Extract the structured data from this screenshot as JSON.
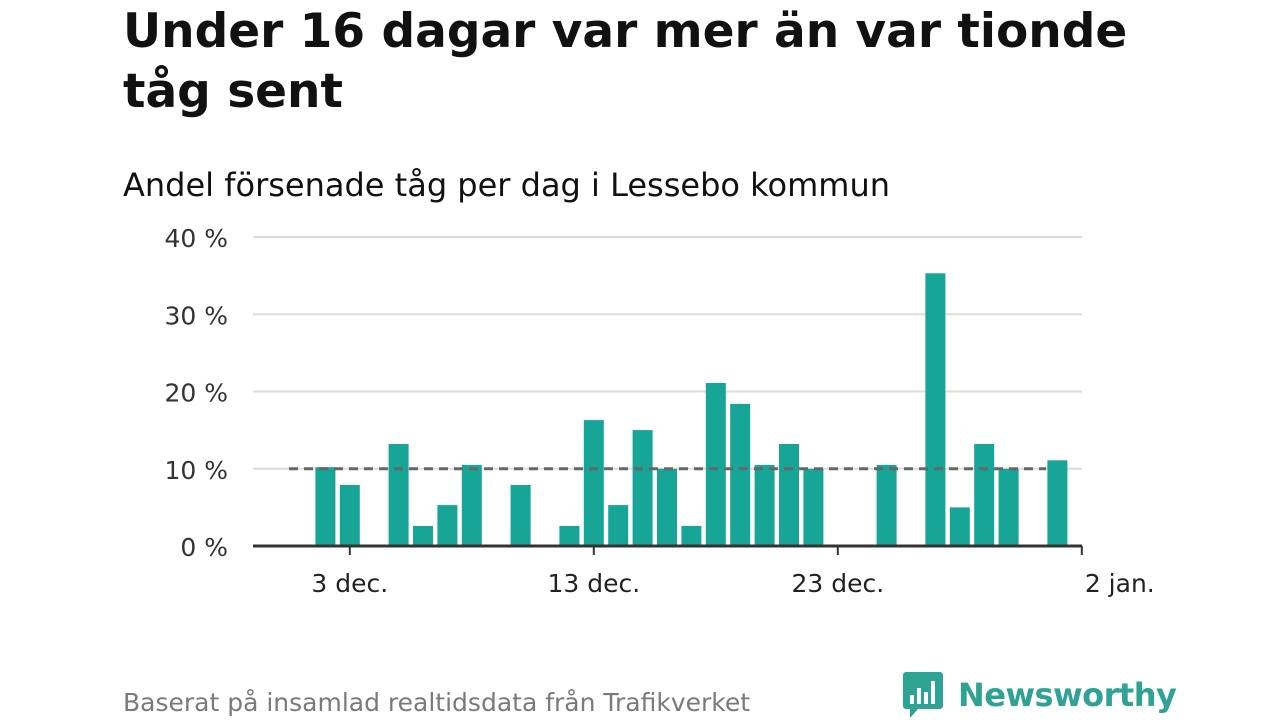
{
  "title": "Under 16 dagar var mer än var tionde tåg sent",
  "subtitle": "Andel försenade tåg per dag i Lessebo kommun",
  "footer": {
    "note": "Baserat på insamlad realtidsdata från Trafikverket",
    "brand": "Newsworthy",
    "brand_icon": "bar-chart-speech-bubble-icon"
  },
  "colors": {
    "bar": "#16a597",
    "reference_line": "#666666",
    "grid": "#dddddd",
    "axis": "#333333",
    "brand": "#2fa393",
    "footer_text": "#7a7a7a"
  },
  "chart_data": {
    "type": "bar",
    "x_start": "2024-12-01",
    "x_labels": [
      {
        "date": "2024-12-03",
        "label": "3 dec."
      },
      {
        "date": "2024-12-13",
        "label": "13 dec."
      },
      {
        "date": "2024-12-23",
        "label": "23 dec."
      },
      {
        "date": "2025-01-02",
        "label": "2 jan."
      }
    ],
    "x_range": [
      "2024-11-30",
      "2025-01-02"
    ],
    "y_ticks": [
      "0 %",
      "10 %",
      "20 %",
      "30 %",
      "40 %"
    ],
    "ylim": [
      0,
      40
    ],
    "grid": true,
    "reference_line": 10,
    "values": [
      {
        "date": "2024-12-02",
        "value": 10.2
      },
      {
        "date": "2024-12-03",
        "value": 7.9
      },
      {
        "date": "2024-12-05",
        "value": 13.2
      },
      {
        "date": "2024-12-06",
        "value": 2.6
      },
      {
        "date": "2024-12-07",
        "value": 5.3
      },
      {
        "date": "2024-12-08",
        "value": 10.5
      },
      {
        "date": "2024-12-10",
        "value": 7.9
      },
      {
        "date": "2024-12-12",
        "value": 2.6
      },
      {
        "date": "2024-12-13",
        "value": 16.3
      },
      {
        "date": "2024-12-14",
        "value": 5.3
      },
      {
        "date": "2024-12-15",
        "value": 15.0
      },
      {
        "date": "2024-12-16",
        "value": 10.0
      },
      {
        "date": "2024-12-17",
        "value": 2.6
      },
      {
        "date": "2024-12-18",
        "value": 21.1
      },
      {
        "date": "2024-12-19",
        "value": 18.4
      },
      {
        "date": "2024-12-20",
        "value": 10.5
      },
      {
        "date": "2024-12-21",
        "value": 13.2
      },
      {
        "date": "2024-12-22",
        "value": 10.0
      },
      {
        "date": "2024-12-25",
        "value": 10.5
      },
      {
        "date": "2024-12-27",
        "value": 35.3
      },
      {
        "date": "2024-12-28",
        "value": 5.0
      },
      {
        "date": "2024-12-29",
        "value": 13.2
      },
      {
        "date": "2024-12-30",
        "value": 10.0
      },
      {
        "date": "2025-01-01",
        "value": 11.1
      }
    ]
  }
}
